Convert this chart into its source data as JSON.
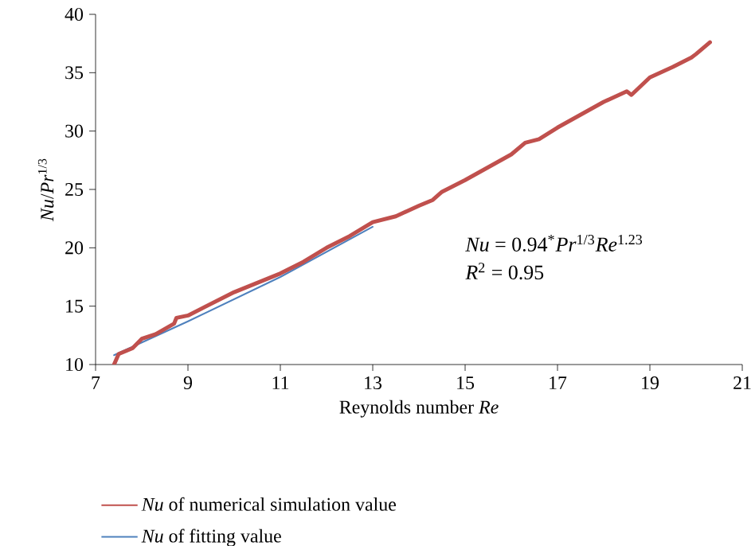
{
  "chart_data": {
    "type": "line",
    "xlabel": "Reynolds number *Re*",
    "ylabel": "*Nu*/*Pr*$^{1/3}$",
    "xlim": [
      7,
      21
    ],
    "xticks": [
      7,
      9,
      11,
      13,
      15,
      17,
      19,
      21
    ],
    "ylim": [
      10,
      40
    ],
    "yticks": [
      10,
      15,
      20,
      25,
      30,
      35,
      40
    ],
    "grid": false,
    "legend": "bottom",
    "line_style": "solid",
    "annotations": [
      "*Nu* = 0.94$^{*}$*Pr*$^{1/3}$*Re*$^{1.23}$",
      "*R*$^{2}$ = 0.95"
    ],
    "series": [
      {
        "name": "*Nu* of numerical simulation value",
        "color": "#c0504d",
        "x": [
          7.4,
          7.5,
          7.8,
          8.0,
          8.3,
          8.7,
          8.75,
          9.0,
          9.5,
          10.0,
          10.5,
          11.0,
          11.5,
          12.0,
          12.5,
          13.0,
          13.5,
          14.0,
          14.3,
          14.5,
          15.0,
          15.5,
          16.0,
          16.3,
          16.6,
          17.0,
          17.5,
          18.0,
          18.5,
          18.6,
          19.0,
          19.5,
          19.7,
          19.9,
          20.0,
          20.3
        ],
        "values": [
          10.0,
          10.9,
          11.4,
          12.2,
          12.6,
          13.5,
          14.0,
          14.2,
          15.2,
          16.2,
          17.0,
          17.8,
          18.8,
          20.0,
          21.0,
          22.2,
          22.7,
          23.6,
          24.1,
          24.8,
          25.8,
          26.9,
          28.0,
          29.0,
          29.3,
          30.3,
          31.4,
          32.5,
          33.4,
          33.1,
          34.6,
          35.5,
          35.9,
          36.3,
          36.6,
          37.6
        ]
      },
      {
        "name": "*Nu* of fitting value",
        "color": "#4f81bd",
        "x": [
          7.4,
          9,
          11,
          13
        ],
        "values": [
          10.8,
          13.7,
          17.5,
          21.8
        ]
      }
    ]
  }
}
